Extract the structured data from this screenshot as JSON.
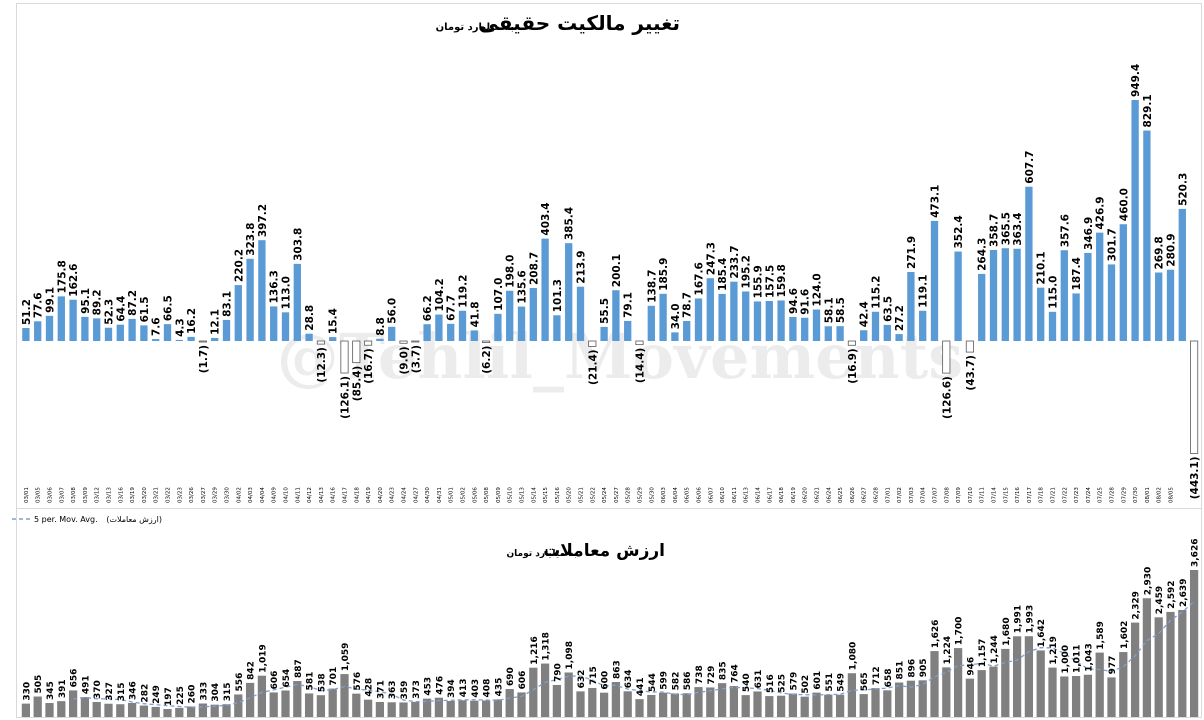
{
  "chart_data": [
    {
      "type": "bar",
      "title": "تغییر مالکیت حقیقی",
      "subtitle": "به میلیارد تومان",
      "categories": [
        "03/01",
        "03/05",
        "03/06",
        "03/07",
        "03/08",
        "03/09",
        "03/12",
        "03/13",
        "03/16",
        "03/19",
        "03/20",
        "03/21",
        "03/22",
        "03/23",
        "03/26",
        "03/27",
        "03/29",
        "03/30",
        "04/02",
        "04/03",
        "04/04",
        "04/09",
        "04/10",
        "04/11",
        "04/12",
        "04/13",
        "04/16",
        "04/17",
        "04/18",
        "04/19",
        "04/20",
        "04/23",
        "04/24",
        "04/27",
        "04/30",
        "04/31",
        "05/01",
        "05/02",
        "05/06",
        "05/08",
        "05/09",
        "05/10",
        "05/13",
        "05/14",
        "05/15",
        "05/16",
        "05/20",
        "05/21",
        "05/22",
        "05/24",
        "05/27",
        "05/28",
        "05/29",
        "05/30",
        "06/03",
        "06/04",
        "06/05",
        "06/06",
        "06/07",
        "06/10",
        "06/11",
        "06/13",
        "06/14",
        "06/17",
        "06/18",
        "06/19",
        "06/20",
        "06/21",
        "06/24",
        "06/25",
        "06/26",
        "06/27",
        "06/28",
        "07/01",
        "07/02",
        "07/03",
        "07/04",
        "07/07",
        "07/08",
        "07/09",
        "07/10",
        "07/11",
        "07/14",
        "07/15",
        "07/16",
        "07/17",
        "07/18",
        "07/21",
        "07/22",
        "07/23",
        "07/24",
        "07/25",
        "07/28",
        "07/29",
        "07/30",
        "08/01",
        "08/02",
        "08/05"
      ],
      "values": [
        51.2,
        77.6,
        99.1,
        175.8,
        162.6,
        95.1,
        89.2,
        52.3,
        64.4,
        87.2,
        61.5,
        7.6,
        66.5,
        4.3,
        16.2,
        -1.7,
        12.1,
        83.1,
        220.2,
        323.8,
        397.2,
        136.3,
        113.0,
        303.8,
        28.8,
        -12.3,
        15.4,
        -126.1,
        -85.4,
        -16.7,
        8.8,
        56.0,
        -9.0,
        -3.7,
        66.2,
        104.2,
        67.7,
        119.2,
        41.8,
        -6.2,
        107.0,
        198.0,
        135.6,
        208.7,
        403.4,
        101.3,
        385.4,
        213.9,
        -21.4,
        55.5,
        200.1,
        79.1,
        -14.4,
        138.7,
        185.9,
        34.0,
        78.7,
        167.6,
        247.3,
        185.4,
        233.7,
        195.2,
        155.9,
        157.5,
        159.8,
        94.6,
        91.6,
        124.0,
        58.1,
        58.5,
        -16.9,
        42.4,
        115.2,
        63.5,
        27.2,
        271.9,
        119.1,
        473.1,
        -126.6,
        352.4,
        -43.7,
        264.3,
        358.7,
        365.5,
        363.4,
        607.7,
        210.1,
        115.0,
        357.6,
        187.4,
        346.9,
        426.9,
        301.7,
        460.0,
        949.4,
        829.1,
        269.8,
        280.9,
        520.3,
        -443.1
      ],
      "labels": [
        "51.2",
        "77.6",
        "99.1",
        "175.8",
        "162.6",
        "95.1",
        "89.2",
        "52.3",
        "64.4",
        "87.2",
        "61.5",
        "7.6",
        "66.5",
        "4.3",
        "16.2",
        "(1.7)",
        "12.1",
        "83.1",
        "220.2",
        "323.8",
        "397.2",
        "136.3",
        "113.0",
        "303.8",
        "28.8",
        "(12.3)",
        "15.4",
        "(126.1)",
        "(85.4)",
        "(16.7)",
        "8.8",
        "56.0",
        "(9.0)",
        "(3.7)",
        "66.2",
        "104.2",
        "67.7",
        "119.2",
        "41.8",
        "(6.2)",
        "107.0",
        "198.0",
        "135.6",
        "208.7",
        "403.4",
        "101.3",
        "385.4",
        "213.9",
        "(21.4)",
        "55.5",
        "200.1",
        "79.1",
        "(14.4)",
        "138.7",
        "185.9",
        "34.0",
        "78.7",
        "167.6",
        "247.3",
        "185.4",
        "233.7",
        "195.2",
        "155.9",
        "157.5",
        "159.8",
        "94.6",
        "91.6",
        "124.0",
        "58.1",
        "58.5",
        "(16.9)",
        "42.4",
        "115.2",
        "63.5",
        "27.2",
        "271.9",
        "119.1",
        "473.1",
        "(126.6)",
        "352.4",
        "(43.7)",
        "264.3",
        "358.7",
        "365.5",
        "363.4",
        "607.7",
        "210.1",
        "115.0",
        "357.6",
        "187.4",
        "346.9",
        "426.9",
        "301.7",
        "460.0",
        "949.4",
        "829.1",
        "269.8",
        "280.9",
        "520.3",
        "(443.1)"
      ],
      "colors": {
        "positive": "#5b9bd5",
        "negative": "#ffffff",
        "negative_stroke": "#595959"
      },
      "watermark": "@Tehlil_Movements",
      "ylim": [
        -450,
        1000
      ]
    },
    {
      "type": "bar",
      "title": "ارزش معاملات",
      "subtitle": "به میلیارد تومان",
      "legend": [
        "(ارزش معاملات)",
        "5 per. Mov. Avg."
      ],
      "legend_position": "top-left",
      "series_name": "ارزش معاملات",
      "values": [
        330,
        505,
        345,
        391,
        656,
        491,
        370,
        327,
        315,
        346,
        282,
        249,
        197,
        225,
        260,
        333,
        304,
        315,
        556,
        842,
        1019,
        606,
        654,
        887,
        581,
        538,
        701,
        1059,
        576,
        428,
        371,
        363,
        359,
        373,
        453,
        476,
        394,
        413,
        403,
        408,
        435,
        690,
        606,
        1216,
        1318,
        790,
        1098,
        632,
        715,
        600,
        863,
        634,
        441,
        544,
        599,
        582,
        586,
        738,
        729,
        835,
        764,
        540,
        631,
        516,
        525,
        579,
        502,
        601,
        551,
        549,
        1080,
        565,
        712,
        658,
        851,
        896,
        905,
        1626,
        1224,
        1700,
        946,
        1157,
        1244,
        1680,
        1991,
        1993,
        1642,
        1219,
        1000,
        1011,
        1043,
        1589,
        977,
        1602,
        2329,
        2930,
        2459,
        2592,
        2639,
        3626
      ],
      "labels": [
        "330",
        "505",
        "345",
        "391",
        "656",
        "491",
        "370",
        "327",
        "315",
        "346",
        "282",
        "249",
        "197",
        "225",
        "260",
        "333",
        "304",
        "315",
        "556",
        "842",
        "1,019",
        "606",
        "654",
        "887",
        "581",
        "538",
        "701",
        "1,059",
        "576",
        "428",
        "371",
        "363",
        "359",
        "373",
        "453",
        "476",
        "394",
        "413",
        "403",
        "408",
        "435",
        "690",
        "606",
        "1,216",
        "1,318",
        "790",
        "1,098",
        "632",
        "715",
        "600",
        "863",
        "634",
        "441",
        "544",
        "599",
        "582",
        "586",
        "738",
        "729",
        "835",
        "764",
        "540",
        "631",
        "516",
        "525",
        "579",
        "502",
        "601",
        "551",
        "549",
        "1,080",
        "565",
        "712",
        "658",
        "851",
        "896",
        "905",
        "1,626",
        "1,224",
        "1,700",
        "946",
        "1,157",
        "1,244",
        "1,680",
        "1,991",
        "1,993",
        "1,642",
        "1,219",
        "1,000",
        "1,011",
        "1,043",
        "1,589",
        "977",
        "1,602",
        "2,329",
        "2,930",
        "2,459",
        "2,592",
        "2,639",
        "3,626"
      ],
      "moving_average_period": 5,
      "colors": {
        "bar": "#808080",
        "moving_average": "#7f9fcf"
      },
      "ylim": [
        0,
        3700
      ]
    }
  ]
}
